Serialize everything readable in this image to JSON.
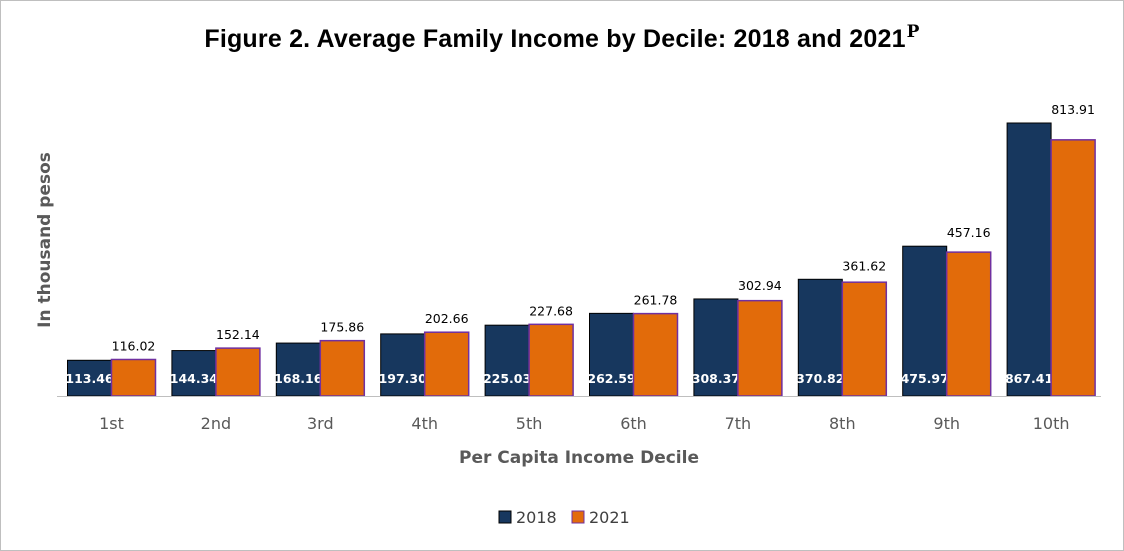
{
  "chart_data": {
    "type": "bar",
    "title": "Figure 2. Average Family Income by Decile: 2018 and 2021",
    "title_superscript": "P",
    "xlabel": "Per Capita Income Decile",
    "ylabel": "In thousand pesos",
    "categories": [
      "1st",
      "2nd",
      "3rd",
      "4th",
      "5th",
      "6th",
      "7th",
      "8th",
      "9th",
      "10th"
    ],
    "series": [
      {
        "name": "2018",
        "color": "#17375e",
        "values": [
          113.46,
          144.34,
          168.16,
          197.3,
          225.03,
          262.59,
          308.37,
          370.82,
          475.97,
          867.41
        ],
        "labels": [
          "113.46",
          "144.34",
          "168.16",
          "197.30",
          "225.03",
          "262.59",
          "308.37",
          "370.82",
          "475.97",
          "867.41"
        ]
      },
      {
        "name": "2021",
        "color": "#e26b0a",
        "values": [
          116.02,
          152.14,
          175.86,
          202.66,
          227.68,
          261.78,
          302.94,
          361.62,
          457.16,
          813.91
        ],
        "labels": [
          "116.02",
          "152.14",
          "175.86",
          "202.66",
          "227.68",
          "261.78",
          "302.94",
          "361.62",
          "457.16",
          "813.91"
        ]
      }
    ],
    "ylim": [
      0,
      867.41
    ],
    "grid": false,
    "legend": "bottom-center"
  }
}
